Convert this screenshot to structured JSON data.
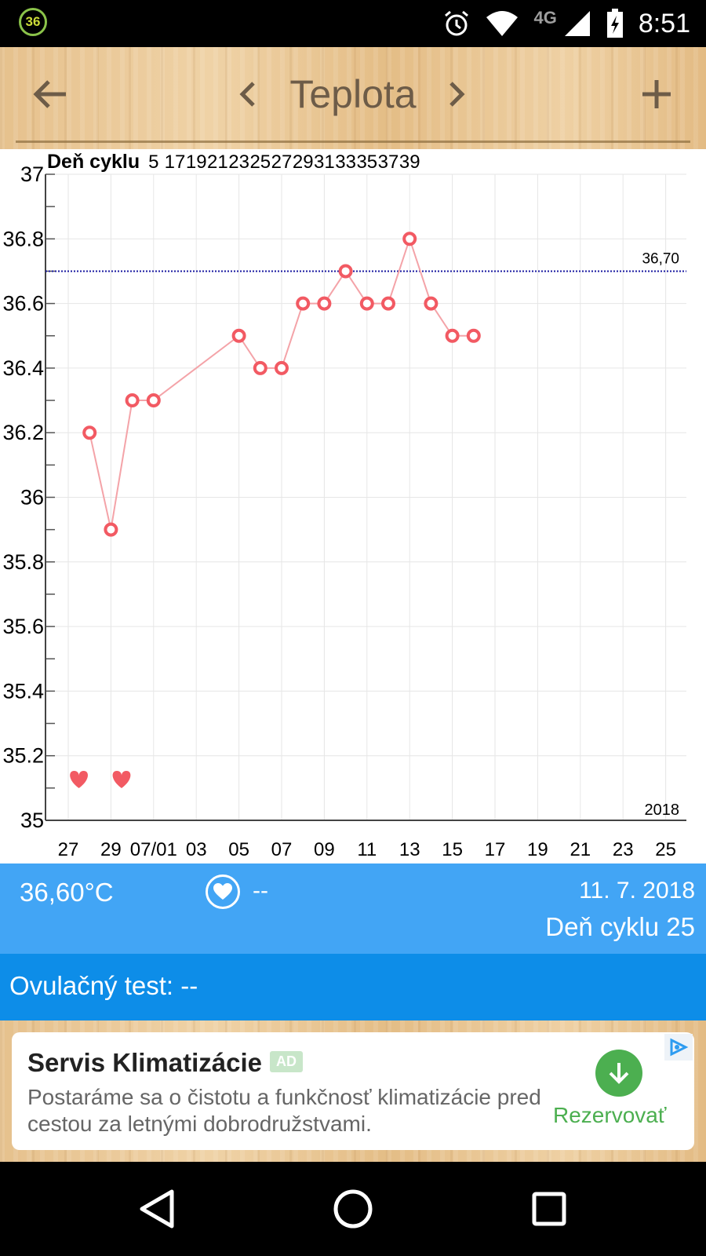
{
  "status_bar": {
    "badge": "36",
    "network": "4G",
    "time": "8:51",
    "icons": [
      "alarm-icon",
      "wifi-icon",
      "signal-icon",
      "battery-icon"
    ]
  },
  "toolbar": {
    "title": "Teplota",
    "back_icon": "arrow-left-icon",
    "prev_icon": "chevron-left-icon",
    "next_icon": "chevron-right-icon",
    "add_icon": "plus-icon"
  },
  "chart_data": {
    "type": "line",
    "top_axis_label": "Deň cyklu",
    "top_ticks": [
      "5",
      "17",
      "19",
      "21",
      "23",
      "25",
      "27",
      "29",
      "31",
      "33",
      "35",
      "37",
      "39"
    ],
    "bottom_ticks": [
      "27",
      "29",
      "07/01",
      "03",
      "05",
      "07",
      "09",
      "11",
      "13",
      "15",
      "17",
      "19",
      "21",
      "23",
      "25"
    ],
    "y_ticks": [
      "37",
      "36.8",
      "36.6",
      "36.4",
      "36.2",
      "36",
      "35.8",
      "35.6",
      "35.4",
      "35.2",
      "35"
    ],
    "ylim": [
      35,
      37
    ],
    "xlim": [
      -1,
      29
    ],
    "x_day_index": [
      1,
      2,
      3,
      4,
      8,
      9,
      10,
      11,
      12,
      13,
      14,
      15,
      16,
      17,
      18,
      19
    ],
    "values": [
      36.2,
      35.9,
      36.3,
      36.3,
      36.5,
      36.4,
      36.4,
      36.6,
      36.6,
      36.7,
      36.6,
      36.6,
      36.8,
      36.6,
      36.5,
      36.5
    ],
    "coverline": {
      "value": 36.7,
      "label": "36,70"
    },
    "year_label": "2018",
    "heart_days": [
      0,
      2
    ],
    "colors": {
      "line": "#f4a3a8",
      "marker": "#f25a63",
      "coverline": "#1a1aa0",
      "grid": "#e6e6e6"
    },
    "grid": true
  },
  "info": {
    "temperature": "36,60°C",
    "intercourse_icon": "heart-icon",
    "intercourse_value": "--",
    "date": "11. 7. 2018",
    "cycle_day": "Deň cyklu 25",
    "ovulation_test": "Ovulačný test: --"
  },
  "ad": {
    "title": "Servis Klimatizácie",
    "badge": "AD",
    "text": "Postaráme sa o čistotu a funkčnosť klimatizácie pred cestou za letnými dobrodružstvami.",
    "cta": "Rezervovať",
    "cta_icon": "download-arrow-icon",
    "choices_icon": "adchoices-icon"
  },
  "nav_bar": {
    "icons": [
      "back-triangle-icon",
      "home-circle-icon",
      "recents-square-icon"
    ]
  }
}
